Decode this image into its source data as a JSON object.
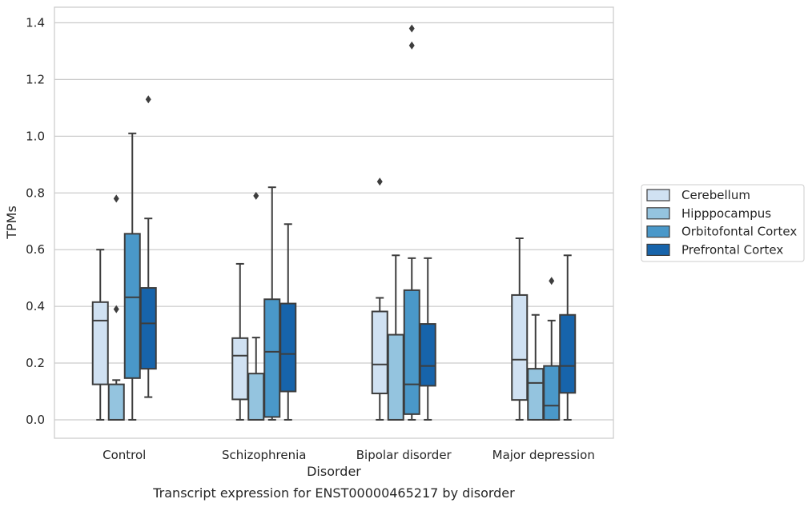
{
  "chart_data": {
    "type": "boxplot",
    "xlabel": "Disorder",
    "ylabel": "TPMs",
    "caption": "Transcript expression for ENST00000465217 by disorder",
    "ylim": [
      -0.065,
      1.455
    ],
    "yticks": [
      0.0,
      0.2,
      0.4,
      0.6,
      0.8,
      1.0,
      1.2,
      1.4
    ],
    "ytick_labels": [
      "0.0",
      "0.2",
      "0.4",
      "0.6",
      "0.8",
      "1.0",
      "1.2",
      "1.4"
    ],
    "grid": "horizontal",
    "legend_position": "right",
    "categories": [
      "Control",
      "Schizophrenia",
      "Bipolar disorder",
      "Major depression"
    ],
    "series": [
      {
        "name": "Cerebellum",
        "color": "#d0e1f2",
        "boxes": [
          {
            "whislo": 0.0,
            "q1": 0.125,
            "med": 0.35,
            "q3": 0.415,
            "whishi": 0.6,
            "fliers": []
          },
          {
            "whislo": 0.0,
            "q1": 0.072,
            "med": 0.226,
            "q3": 0.288,
            "whishi": 0.55,
            "fliers": []
          },
          {
            "whislo": 0.0,
            "q1": 0.093,
            "med": 0.195,
            "q3": 0.382,
            "whishi": 0.43,
            "fliers": [
              0.84
            ]
          },
          {
            "whislo": 0.0,
            "q1": 0.07,
            "med": 0.212,
            "q3": 0.44,
            "whishi": 0.64,
            "fliers": []
          }
        ]
      },
      {
        "name": "Hipppocampus",
        "color": "#94c4df",
        "boxes": [
          {
            "whislo": 0.0,
            "q1": 0.0,
            "med": 0.0,
            "q3": 0.125,
            "whishi": 0.14,
            "fliers": [
              0.39,
              0.78
            ]
          },
          {
            "whislo": 0.0,
            "q1": 0.0,
            "med": 0.0,
            "q3": 0.163,
            "whishi": 0.29,
            "fliers": [
              0.79
            ]
          },
          {
            "whislo": 0.0,
            "q1": 0.0,
            "med": 0.0,
            "q3": 0.3,
            "whishi": 0.58,
            "fliers": []
          },
          {
            "whislo": 0.0,
            "q1": 0.0,
            "med": 0.13,
            "q3": 0.18,
            "whishi": 0.37,
            "fliers": []
          }
        ]
      },
      {
        "name": "Orbitofontal Cortex",
        "color": "#4a98c9",
        "boxes": [
          {
            "whislo": 0.0,
            "q1": 0.147,
            "med": 0.432,
            "q3": 0.656,
            "whishi": 1.01,
            "fliers": []
          },
          {
            "whislo": 0.0,
            "q1": 0.01,
            "med": 0.24,
            "q3": 0.425,
            "whishi": 0.82,
            "fliers": []
          },
          {
            "whislo": 0.0,
            "q1": 0.02,
            "med": 0.125,
            "q3": 0.457,
            "whishi": 0.57,
            "fliers": [
              1.32,
              1.38
            ]
          },
          {
            "whislo": 0.0,
            "q1": 0.0,
            "med": 0.05,
            "q3": 0.19,
            "whishi": 0.35,
            "fliers": [
              0.49
            ]
          }
        ]
      },
      {
        "name": "Prefrontal Cortex",
        "color": "#1764ab",
        "boxes": [
          {
            "whislo": 0.08,
            "q1": 0.18,
            "med": 0.34,
            "q3": 0.465,
            "whishi": 0.71,
            "fliers": [
              1.13
            ]
          },
          {
            "whislo": 0.0,
            "q1": 0.1,
            "med": 0.232,
            "q3": 0.41,
            "whishi": 0.69,
            "fliers": []
          },
          {
            "whislo": 0.0,
            "q1": 0.12,
            "med": 0.19,
            "q3": 0.338,
            "whishi": 0.57,
            "fliers": []
          },
          {
            "whislo": 0.0,
            "q1": 0.095,
            "med": 0.19,
            "q3": 0.37,
            "whishi": 0.58,
            "fliers": []
          }
        ]
      }
    ]
  }
}
